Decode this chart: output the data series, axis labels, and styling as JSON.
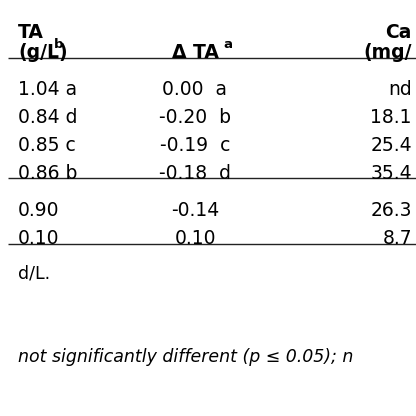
{
  "col1_h1": "TA",
  "col1_h2": "(g/L)",
  "col1_h2_sup": "b",
  "col2_h": "Δ TA",
  "col2_h_sup": "a",
  "col3_h1": "Ca",
  "col3_h2": "(mg/",
  "data_rows": [
    [
      "1.04 a",
      "0.00  a",
      "nd"
    ],
    [
      "0.84 d",
      "-0.20  b",
      "18.1"
    ],
    [
      "0.85 c",
      "-0.19  c",
      "25.4"
    ],
    [
      "0.86 b",
      "-0.18  d",
      "35.4"
    ]
  ],
  "stat_rows": [
    [
      "0.90",
      "-0.14",
      "26.3"
    ],
    [
      "0.10",
      "0.10",
      "8.7"
    ]
  ],
  "footnote1": "d/L.",
  "footnote2": "not significantly different (",
  "footnote2b": "p",
  "footnote2c": " ≤ 0.05); n",
  "bg_color": "#ffffff",
  "text_color": "#000000",
  "bold_font_size": 13.5,
  "data_font_size": 13.5,
  "footnote_font_size": 12.5,
  "line_color": "#222222",
  "line_lw": 1.0
}
